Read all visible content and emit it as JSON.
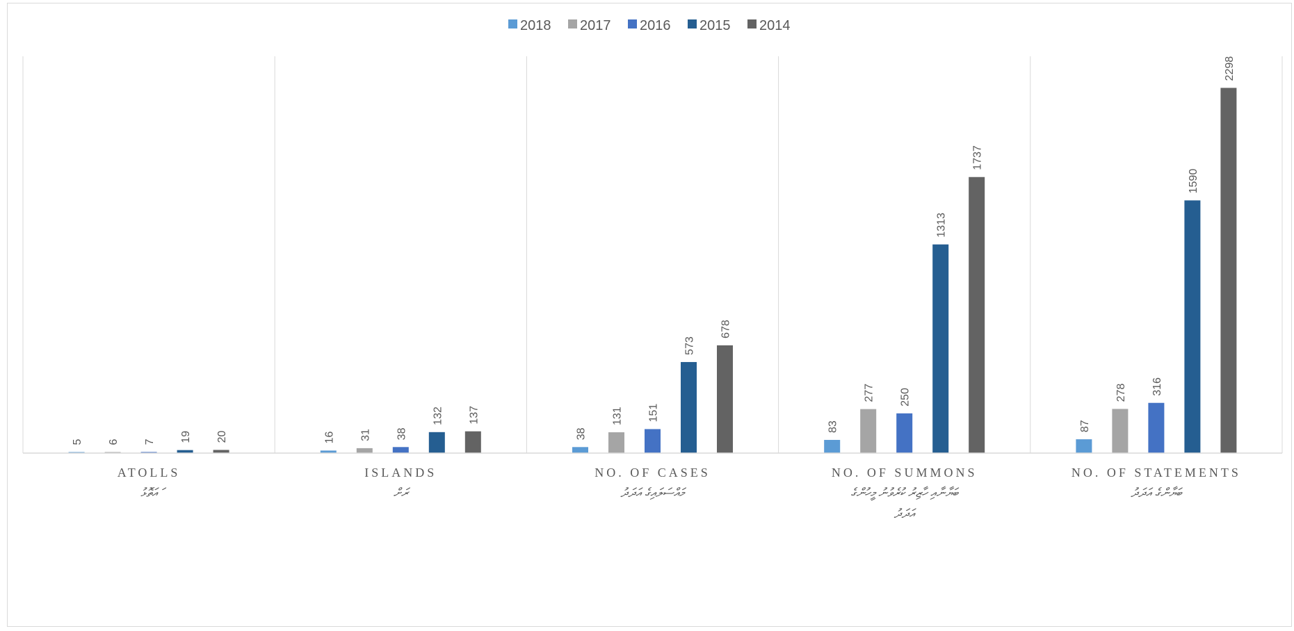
{
  "chart_data": {
    "type": "bar",
    "categories": [
      {
        "label": "ATOLLS",
        "sublabel": [
          "ައަތޮޅު"
        ]
      },
      {
        "label": "ISLANDS",
        "sublabel": [
          "ރަށް"
        ]
      },
      {
        "label": "NO. OF CASES",
        "sublabel": [
          "މައްސަލައިގެ އަދަދު"
        ]
      },
      {
        "label": "NO. OF SUMMONS",
        "sublabel": [
          "ބަޔާނާއި ހާޒިރު ކުރެވުނު މީހުންގެ",
          "އަދަދު"
        ]
      },
      {
        "label": "NO. OF STATEMENTS",
        "sublabel": [
          "ބަޔާންގެ އަދަދު"
        ]
      }
    ],
    "series": [
      {
        "name": "2018",
        "color": "#5B9BD5",
        "values": [
          5,
          16,
          38,
          83,
          87
        ]
      },
      {
        "name": "2017",
        "color": "#A5A5A5",
        "values": [
          6,
          31,
          131,
          277,
          278
        ]
      },
      {
        "name": "2016",
        "color": "#4472C4",
        "values": [
          7,
          38,
          151,
          250,
          316
        ]
      },
      {
        "name": "2015",
        "color": "#255E91",
        "values": [
          19,
          132,
          573,
          1313,
          1590
        ]
      },
      {
        "name": "2014",
        "color": "#636363",
        "values": [
          20,
          137,
          678,
          1737,
          2298
        ]
      }
    ],
    "ylim": [
      0,
      2500
    ],
    "grid": false,
    "legend": "top-center"
  }
}
